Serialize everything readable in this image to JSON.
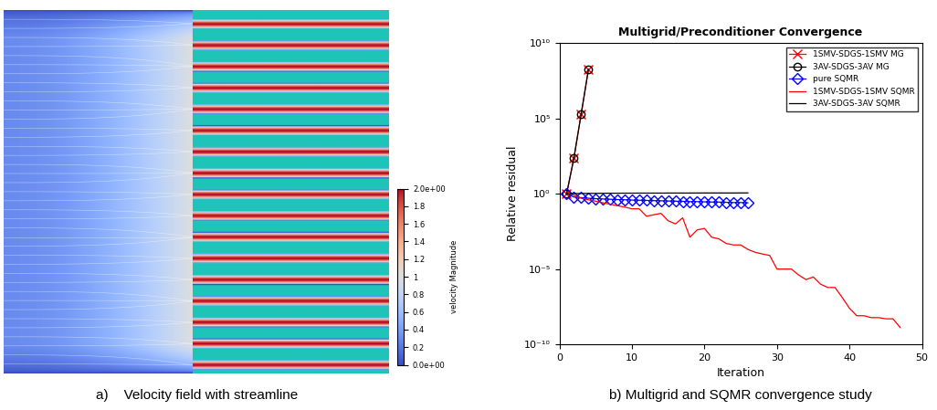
{
  "chart_data": [
    {
      "type": "heatmap",
      "caption": "a)    Velocity field with streamline",
      "colorbar_label": "velocity Magnitude",
      "colorbar_range": [
        0,
        2
      ],
      "colorbar_ticks": [
        {
          "value": 0,
          "label": "0.0e+00"
        },
        0.2,
        0.4,
        0.6,
        0.8,
        1,
        1.2,
        1.4,
        1.6,
        1.8,
        {
          "value": 2,
          "label": "2.0e+00"
        }
      ]
    },
    {
      "type": "line",
      "title": "Multigrid/Preconditioner Convergence",
      "caption": "b) Multigrid and SQMR convergence study",
      "x_label": "Iteration",
      "y_label": "Relative residual",
      "log": "y",
      "legend": "upper right",
      "xlim": [
        0,
        50
      ],
      "xticks": [
        0,
        10,
        20,
        30,
        40,
        50
      ],
      "ylim": [
        1e-10,
        10000000000.0
      ],
      "yticks": [
        {
          "value": 1e-10,
          "label": "10⁻¹⁰"
        },
        {
          "value": 1e-05,
          "label": "10⁻⁵"
        },
        {
          "value": 1,
          "label": "10⁰"
        },
        {
          "value": 100000.0,
          "label": "10⁵"
        },
        {
          "value": 10000000000.0,
          "label": "10¹⁰"
        }
      ],
      "series": [
        {
          "name": "1SMV-SDGS-1SMV MG",
          "color": "#ff0000",
          "marker": "x",
          "line_style": "solid",
          "x": [
            1,
            2,
            3,
            4
          ],
          "values": [
            1,
            230,
            190000,
            170000000
          ]
        },
        {
          "name": "3AV-SDGS-3AV MG",
          "color": "#000000",
          "marker": "o",
          "line_style": "solid",
          "x": [
            1,
            2,
            3,
            4
          ],
          "values": [
            1,
            230,
            190000,
            170000000
          ]
        },
        {
          "name": "pure SQMR",
          "color": "#0000ff",
          "marker": "D",
          "line_style": "solid",
          "x": [
            1,
            2,
            3,
            4,
            5,
            6,
            7,
            8,
            9,
            10,
            11,
            12,
            13,
            14,
            15,
            16,
            17,
            18,
            19,
            20,
            21,
            22,
            23,
            24,
            25,
            26
          ],
          "values": [
            1,
            0.6,
            0.55,
            0.5,
            0.47,
            0.45,
            0.43,
            0.41,
            0.4,
            0.38,
            0.37,
            0.36,
            0.35,
            0.34,
            0.33,
            0.32,
            0.31,
            0.3,
            0.3,
            0.29,
            0.28,
            0.28,
            0.27,
            0.26,
            0.26,
            0.25
          ]
        },
        {
          "name": "1SMV-SDGS-1SMV SQMR",
          "color": "#ff0000",
          "marker": "none",
          "line_style": "solid",
          "x": [
            1,
            2,
            3,
            4,
            5,
            6,
            7,
            8,
            9,
            10,
            11,
            12,
            13,
            14,
            15,
            16,
            17,
            18,
            19,
            20,
            21,
            22,
            23,
            24,
            25,
            26,
            27,
            28,
            29,
            30,
            31,
            32,
            33,
            34,
            35,
            36,
            37,
            38,
            39,
            40,
            41,
            42,
            43,
            44,
            45,
            46,
            47
          ],
          "values": [
            1,
            0.79,
            0.5,
            0.4,
            0.32,
            0.25,
            0.2,
            0.16,
            0.13,
            0.1,
            0.1,
            0.032,
            0.04,
            0.05,
            0.016,
            0.01,
            0.025,
            0.0013,
            0.004,
            0.005,
            0.0013,
            0.001,
            0.0005,
            0.0004,
            0.0004,
            0.0002,
            0.00013,
            0.0001,
            8e-05,
            1e-05,
            1e-05,
            1e-05,
            4e-06,
            2e-06,
            3e-06,
            1e-06,
            6e-07,
            6e-07,
            1.3e-07,
            2.5e-08,
            8e-09,
            8e-09,
            6e-09,
            6e-09,
            5e-09,
            5e-09,
            1.3e-09
          ]
        },
        {
          "name": "3AV-SDGS-3AV SQMR",
          "color": "#000000",
          "marker": "none",
          "line_style": "solid",
          "x": [
            1,
            2,
            3,
            4,
            5,
            6,
            7,
            8,
            9,
            10,
            11,
            12,
            13,
            14,
            15,
            16,
            17,
            18,
            19,
            20,
            21,
            22,
            23,
            24,
            25,
            26
          ],
          "values": [
            1,
            1.02,
            1.04,
            1.05,
            1.06,
            1.07,
            1.08,
            1.08,
            1.09,
            1.09,
            1.1,
            1.1,
            1.1,
            1.1,
            1.11,
            1.11,
            1.11,
            1.11,
            1.12,
            1.12,
            1.12,
            1.12,
            1.12,
            1.12,
            1.13,
            1.13
          ]
        }
      ]
    }
  ]
}
